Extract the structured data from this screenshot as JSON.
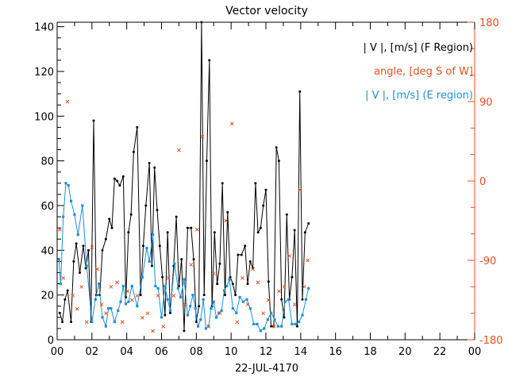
{
  "chart_data": {
    "type": "line",
    "title": "Vector velocity",
    "xlabel": "22-JUL-4170",
    "x_ticks": [
      "00",
      "02",
      "04",
      "06",
      "08",
      "10",
      "12",
      "14",
      "16",
      "18",
      "20",
      "22",
      "00"
    ],
    "xlim": [
      0,
      24
    ],
    "ylim_left": [
      0,
      142
    ],
    "y_ticks_left": [
      "0",
      "20",
      "40",
      "60",
      "80",
      "100",
      "120",
      "140"
    ],
    "ylim_right": [
      -180,
      180
    ],
    "y_ticks_right": [
      "-180",
      "-90",
      "0",
      "90",
      "180"
    ],
    "colors": {
      "f": "#000000",
      "angle": "#e8501e",
      "e": "#1e90d8"
    },
    "legend": [
      {
        "key": "f",
        "label": "| V |, [m/s] (F Region)"
      },
      {
        "key": "angle",
        "label": "angle, [deg S of W]"
      },
      {
        "key": "e",
        "label": "| V |, [m/s] (E region)"
      }
    ],
    "series": [
      {
        "name": "| V |, [m/s] (F Region)",
        "key": "f",
        "axis": "left",
        "style": "line-dot",
        "x": [
          0.15,
          0.3,
          0.45,
          0.6,
          0.8,
          0.95,
          1.1,
          1.3,
          1.5,
          1.65,
          1.8,
          1.95,
          2.1,
          2.25,
          2.45,
          2.6,
          2.8,
          3.0,
          3.15,
          3.3,
          3.45,
          3.6,
          3.8,
          3.95,
          4.1,
          4.25,
          4.4,
          4.6,
          4.8,
          4.95,
          5.1,
          5.3,
          5.45,
          5.6,
          5.75,
          5.9,
          6.05,
          6.2,
          6.35,
          6.5,
          6.7,
          6.85,
          7.0,
          7.15,
          7.3,
          7.5,
          7.7,
          7.85,
          8.0,
          8.15,
          8.3,
          8.45,
          8.6,
          8.75,
          8.9,
          9.05,
          9.2,
          9.35,
          9.5,
          9.65,
          9.8,
          9.95,
          10.1,
          10.25,
          10.4,
          10.6,
          10.8,
          10.95,
          11.1,
          11.25,
          11.4,
          11.55,
          11.7,
          11.85,
          12.0,
          12.15,
          12.3,
          12.45,
          12.6,
          12.75,
          12.9,
          13.05,
          13.2,
          13.35,
          13.5,
          13.65,
          13.8,
          13.95,
          14.1,
          14.25,
          14.45
        ],
        "y": [
          12,
          8,
          18,
          22,
          8,
          35,
          43,
          30,
          42,
          32,
          40,
          8,
          98,
          20,
          20,
          40,
          45,
          54,
          50,
          72,
          71,
          69,
          73,
          19,
          48,
          56,
          84,
          95,
          20,
          42,
          60,
          79,
          33,
          77,
          58,
          42,
          28,
          11,
          48,
          12,
          33,
          55,
          24,
          36,
          4,
          50,
          50,
          36,
          8,
          15,
          142,
          20,
          80,
          125,
          15,
          48,
          25,
          34,
          70,
          20,
          57,
          28,
          25,
          20,
          38,
          38,
          42,
          25,
          35,
          32,
          70,
          48,
          50,
          60,
          67,
          26,
          6,
          6,
          86,
          80,
          18,
          10,
          56,
          18,
          28,
          49,
          6,
          111,
          18,
          48,
          52
        ]
      },
      {
        "name": "| V |, [m/s] (E region)",
        "key": "e",
        "axis": "left",
        "style": "line-square",
        "x": [
          0.1,
          0.2,
          0.35,
          0.5,
          0.65,
          0.8,
          1.0,
          1.2,
          1.45,
          1.7,
          2.0,
          2.2,
          2.4,
          2.6,
          2.8,
          2.95,
          3.1,
          3.3,
          3.5,
          3.65,
          3.8,
          3.95,
          4.1,
          4.3,
          4.6,
          4.9,
          5.15,
          5.3,
          5.5,
          5.65,
          5.8,
          6.0,
          6.2,
          6.35,
          6.5,
          6.75,
          6.95,
          7.1,
          7.3,
          7.5,
          7.65,
          7.8,
          7.95,
          8.1,
          8.25,
          8.4,
          8.55,
          8.7,
          8.85,
          9.0,
          9.15,
          9.3,
          9.45,
          9.6,
          9.75,
          9.9,
          10.1,
          10.3,
          10.5,
          10.7,
          10.9,
          11.1,
          11.3,
          11.5,
          11.7,
          11.9,
          12.1,
          12.3,
          12.5,
          12.7,
          12.9,
          13.1,
          13.3,
          13.5,
          13.7,
          13.9,
          14.1,
          14.3,
          14.45
        ],
        "y": [
          36,
          25,
          55,
          70,
          69,
          62,
          56,
          47,
          60,
          33,
          8,
          18,
          25,
          10,
          6,
          14,
          14,
          8,
          13,
          17,
          24,
          16,
          17,
          24,
          15,
          28,
          41,
          35,
          47,
          24,
          23,
          10,
          24,
          18,
          13,
          34,
          23,
          19,
          27,
          11,
          15,
          20,
          14,
          6,
          9,
          18,
          5,
          6,
          14,
          17,
          10,
          12,
          13,
          22,
          24,
          27,
          14,
          12,
          19,
          17,
          18,
          14,
          7,
          7,
          4,
          5,
          9,
          12,
          9,
          6,
          6,
          17,
          18,
          7,
          7,
          8,
          11,
          18,
          23
        ]
      },
      {
        "name": "angle, [deg S of W]",
        "key": "angle",
        "axis": "right",
        "style": "cross",
        "x": [
          0.15,
          0.35,
          0.6,
          0.9,
          1.15,
          1.4,
          1.7,
          2.0,
          2.3,
          2.55,
          2.8,
          3.1,
          3.45,
          3.75,
          4.05,
          4.3,
          4.6,
          4.9,
          5.2,
          5.5,
          5.8,
          6.1,
          6.4,
          6.7,
          7.0,
          7.35,
          7.7,
          8.05,
          8.35,
          8.7,
          9.0,
          9.35,
          9.7,
          10.05,
          10.35,
          10.65,
          10.95,
          11.25,
          11.55,
          11.85,
          12.15,
          12.45,
          12.75,
          13.05,
          13.35,
          13.65,
          13.95,
          14.2,
          14.4
        ],
        "y": [
          -55,
          -110,
          90,
          -130,
          -145,
          -120,
          -160,
          -75,
          -100,
          -140,
          -150,
          -120,
          -115,
          -160,
          -125,
          -135,
          -130,
          -155,
          -150,
          -170,
          -130,
          -165,
          -110,
          -130,
          35,
          -140,
          -95,
          -55,
          50,
          -165,
          -105,
          -150,
          -45,
          65,
          -160,
          -110,
          -140,
          -100,
          -115,
          -150,
          -135,
          -165,
          -125,
          -120,
          -85,
          -140,
          -10,
          -120,
          -90
        ]
      }
    ]
  }
}
